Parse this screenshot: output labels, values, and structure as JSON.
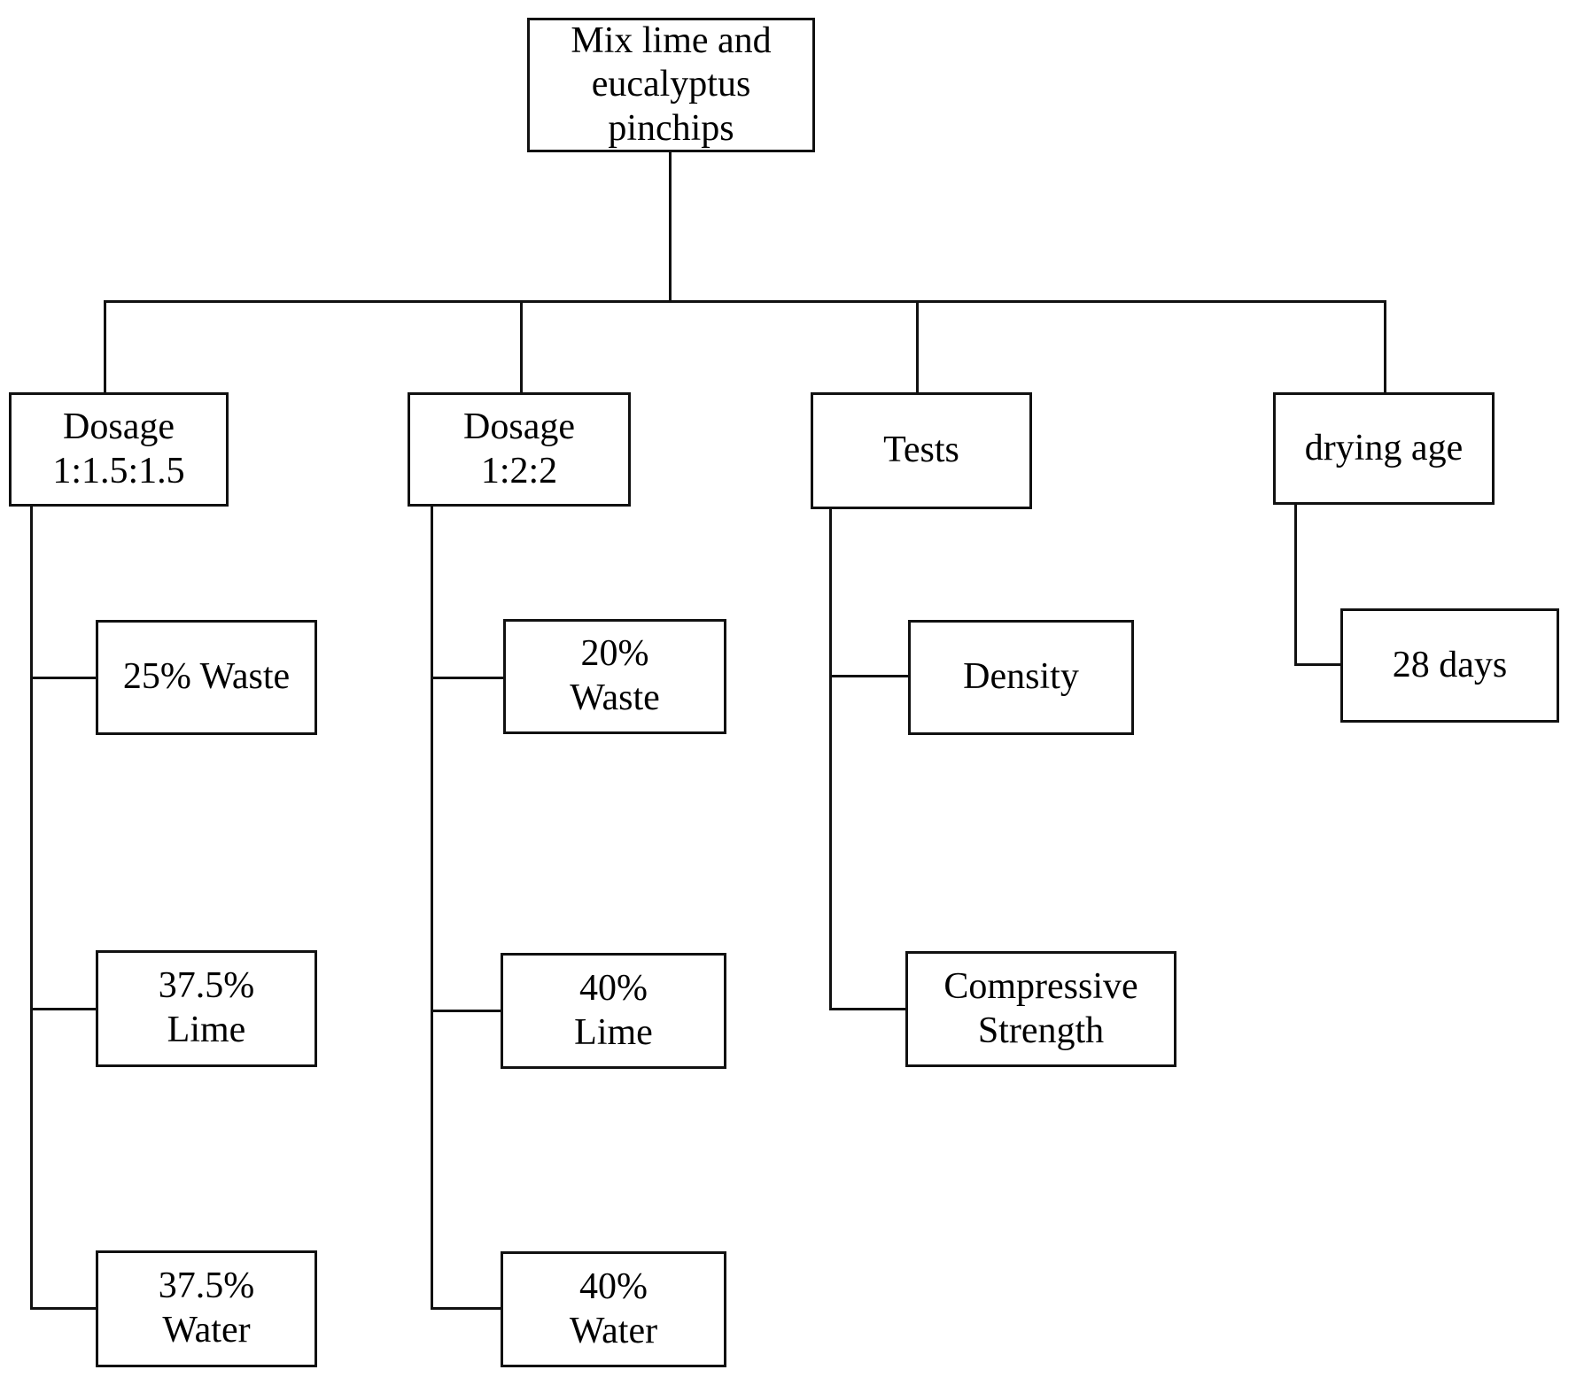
{
  "diagram": {
    "title": "Mix lime and eucalyptus pinchips flowchart",
    "background_color": "#ffffff",
    "line_color": "#111111",
    "root": {
      "label": "Mix lime and\neucalyptus\npinchips"
    },
    "branches": {
      "dosage1": {
        "label": "Dosage\n1:1.5:1.5",
        "children": {
          "waste": "25% Waste",
          "lime": "37.5%\nLime",
          "water": "37.5%\nWater"
        }
      },
      "dosage2": {
        "label": "Dosage\n1:2:2",
        "children": {
          "waste": "20%\nWaste",
          "lime": "40%\nLime",
          "water": "40%\nWater"
        }
      },
      "tests": {
        "label": "Tests",
        "children": {
          "density": "Density",
          "compressive": "Compressive\nStrength"
        }
      },
      "drying": {
        "label": "drying age",
        "children": {
          "days": "28 days"
        }
      }
    }
  }
}
